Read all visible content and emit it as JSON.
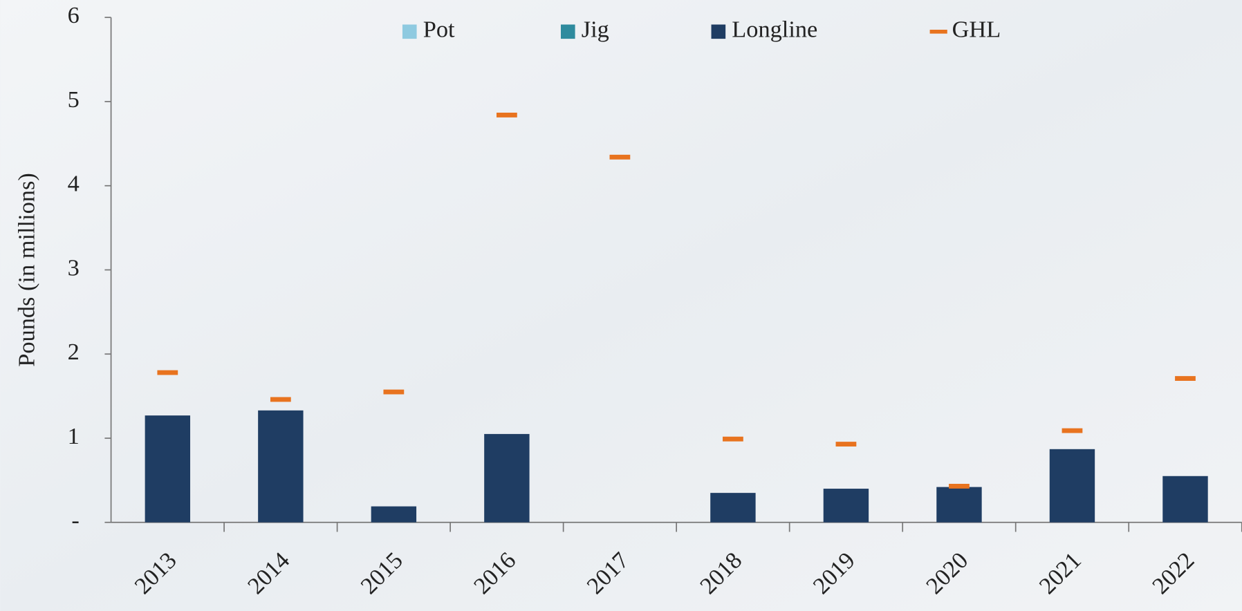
{
  "chart_data": {
    "type": "bar",
    "stacked": true,
    "y_label": "Pounds (in millions)",
    "categories": [
      "2013",
      "2014",
      "2015",
      "2016",
      "2017",
      "2018",
      "2019",
      "2020",
      "2021",
      "2022"
    ],
    "series": [
      {
        "name": "Pot",
        "color": "#8ecae0",
        "values": [
          0,
          0,
          0,
          0,
          0,
          0,
          0,
          0,
          0,
          0
        ]
      },
      {
        "name": "Jig",
        "color": "#2e8b9e",
        "values": [
          0,
          0,
          0,
          0,
          0,
          0,
          0,
          0,
          0,
          0
        ]
      },
      {
        "name": "Longline",
        "color": "#1f3d63",
        "values": [
          1.27,
          1.33,
          0.19,
          1.05,
          0,
          0.35,
          0.4,
          0.42,
          0.87,
          0.55
        ]
      },
      {
        "name": "GHL",
        "type": "dash",
        "color": "#e8731f",
        "values": [
          1.78,
          1.46,
          1.55,
          4.84,
          4.34,
          0.99,
          0.93,
          0.43,
          1.09,
          1.71
        ]
      }
    ],
    "ylim": [
      0,
      6
    ],
    "yticks": [
      {
        "value": 0,
        "label": "-"
      },
      1,
      2,
      3,
      4,
      5,
      6
    ],
    "legend": "top"
  }
}
